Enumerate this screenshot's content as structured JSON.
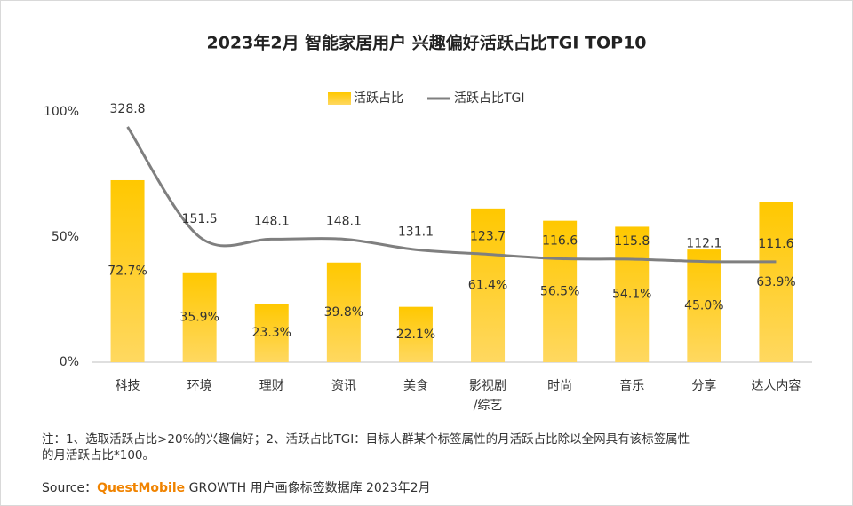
{
  "chart_data": {
    "type": "bar_line",
    "title": "2023年2月 智能家居用户 兴趣偏好活跃占比TGI TOP10",
    "categories": [
      "科技",
      "环境",
      "理财",
      "资讯",
      "美食",
      "影视剧\n/综艺",
      "时尚",
      "音乐",
      "分享",
      "达人内容"
    ],
    "series": [
      {
        "name": "活跃占比",
        "type": "bar",
        "color": "#ffc000",
        "values": [
          72.7,
          35.9,
          23.3,
          39.8,
          22.1,
          61.4,
          56.5,
          54.1,
          45.0,
          63.9
        ],
        "value_labels": [
          "72.7%",
          "35.9%",
          "23.3%",
          "39.8%",
          "22.1%",
          "61.4%",
          "56.5%",
          "54.1%",
          "45.0%",
          "63.9%"
        ]
      },
      {
        "name": "活跃占比TGI",
        "type": "line",
        "color": "#7f7f7f",
        "axis": "y2",
        "values": [
          328.8,
          151.5,
          148.1,
          148.1,
          131.1,
          123.7,
          116.6,
          115.8,
          112.1,
          111.6
        ]
      }
    ],
    "ylim": [
      0,
      100
    ],
    "yticks": [
      {
        "value": 0,
        "label": "0%"
      },
      {
        "value": 50,
        "label": "50%"
      },
      {
        "value": 100,
        "label": "100%"
      }
    ],
    "y2lim": [
      -50,
      353
    ],
    "grid": false,
    "legend": "top",
    "notes": [
      "注：1、选取活跃占比>20%的兴趣偏好；2、活跃占比TGI：目标人群某个标签属性的月活跃占比除以全网具有该标签属性",
      "的月活跃占比*100。"
    ],
    "source": {
      "label": "Source：",
      "brand": "QuestMobile",
      "text": "GROWTH 用户画像标签数据库 2023年2月"
    }
  }
}
